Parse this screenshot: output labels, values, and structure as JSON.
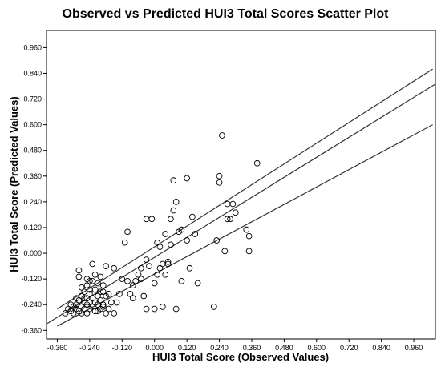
{
  "chart_data": {
    "type": "scatter",
    "title": "Observed vs Predicted HUI3 Total Scores Scatter Plot",
    "xlabel": "HUI3 Total Score (Observed Values)",
    "ylabel": "HUI3 Total Score (Predicted Values)",
    "xlim": [
      -0.4,
      1.04
    ],
    "ylim": [
      -0.4,
      1.04
    ],
    "xticks": [
      "-0.360",
      "-0.240",
      "-0.120",
      "0.000",
      "0.120",
      "0.240",
      "0.360",
      "0.480",
      "0.600",
      "0.720",
      "0.840",
      "0.960"
    ],
    "yticks": [
      "-0.360",
      "-0.240",
      "-0.120",
      "0.000",
      "0.120",
      "0.240",
      "0.360",
      "0.480",
      "0.600",
      "0.720",
      "0.840",
      "0.960"
    ],
    "xtick_values": [
      -0.36,
      -0.24,
      -0.12,
      0.0,
      0.12,
      0.24,
      0.36,
      0.48,
      0.6,
      0.72,
      0.84,
      0.96
    ],
    "ytick_values": [
      -0.36,
      -0.24,
      -0.12,
      0.0,
      0.12,
      0.24,
      0.36,
      0.48,
      0.6,
      0.72,
      0.84,
      0.96
    ],
    "grid": false,
    "marker_color": "#000000",
    "line_color": "#333333",
    "points": [
      [
        -0.33,
        -0.28
      ],
      [
        -0.32,
        -0.26
      ],
      [
        -0.31,
        -0.27
      ],
      [
        -0.3,
        -0.25
      ],
      [
        -0.3,
        -0.28
      ],
      [
        -0.29,
        -0.24
      ],
      [
        -0.29,
        -0.26
      ],
      [
        -0.28,
        -0.22
      ],
      [
        -0.28,
        -0.27
      ],
      [
        -0.27,
        -0.2
      ],
      [
        -0.27,
        -0.25
      ],
      [
        -0.27,
        -0.28
      ],
      [
        -0.26,
        -0.18
      ],
      [
        -0.26,
        -0.23
      ],
      [
        -0.26,
        -0.26
      ],
      [
        -0.25,
        -0.15
      ],
      [
        -0.25,
        -0.21
      ],
      [
        -0.25,
        -0.24
      ],
      [
        -0.25,
        -0.28
      ],
      [
        -0.24,
        -0.19
      ],
      [
        -0.24,
        -0.23
      ],
      [
        -0.24,
        -0.26
      ],
      [
        -0.23,
        -0.13
      ],
      [
        -0.23,
        -0.21
      ],
      [
        -0.23,
        -0.25
      ],
      [
        -0.22,
        -0.17
      ],
      [
        -0.22,
        -0.23
      ],
      [
        -0.22,
        -0.27
      ],
      [
        -0.21,
        -0.2
      ],
      [
        -0.21,
        -0.24
      ],
      [
        -0.2,
        -0.18
      ],
      [
        -0.2,
        -0.22
      ],
      [
        -0.2,
        -0.26
      ],
      [
        -0.19,
        -0.24
      ],
      [
        -0.18,
        -0.2
      ],
      [
        -0.18,
        -0.28
      ],
      [
        -0.28,
        -0.08
      ],
      [
        -0.28,
        -0.11
      ],
      [
        -0.27,
        -0.16
      ],
      [
        -0.26,
        -0.21
      ],
      [
        -0.25,
        -0.12
      ],
      [
        -0.24,
        -0.13
      ],
      [
        -0.23,
        -0.05
      ],
      [
        -0.22,
        -0.1
      ],
      [
        -0.21,
        -0.14
      ],
      [
        -0.2,
        -0.11
      ],
      [
        -0.19,
        -0.15
      ],
      [
        -0.19,
        -0.18
      ],
      [
        -0.18,
        -0.06
      ],
      [
        -0.17,
        -0.19
      ],
      [
        -0.16,
        -0.23
      ],
      [
        -0.15,
        -0.28
      ],
      [
        -0.14,
        -0.23
      ],
      [
        -0.13,
        -0.19
      ],
      [
        -0.12,
        -0.12
      ],
      [
        -0.11,
        0.05
      ],
      [
        -0.1,
        0.1
      ],
      [
        -0.09,
        -0.19
      ],
      [
        -0.08,
        -0.21
      ],
      [
        -0.07,
        -0.13
      ],
      [
        -0.06,
        -0.1
      ],
      [
        -0.05,
        -0.07
      ],
      [
        -0.05,
        -0.12
      ],
      [
        -0.04,
        -0.2
      ],
      [
        -0.03,
        -0.26
      ],
      [
        -0.03,
        0.16
      ],
      [
        -0.02,
        -0.06
      ],
      [
        -0.01,
        0.16
      ],
      [
        0.0,
        -0.14
      ],
      [
        0.0,
        -0.26
      ],
      [
        0.01,
        0.05
      ],
      [
        0.01,
        -0.1
      ],
      [
        0.02,
        0.03
      ],
      [
        0.03,
        -0.05
      ],
      [
        0.03,
        -0.25
      ],
      [
        0.04,
        0.09
      ],
      [
        0.04,
        -0.1
      ],
      [
        0.05,
        -0.04
      ],
      [
        0.05,
        -0.05
      ],
      [
        0.06,
        0.16
      ],
      [
        0.07,
        0.2
      ],
      [
        0.07,
        0.34
      ],
      [
        0.08,
        0.24
      ],
      [
        0.08,
        -0.26
      ],
      [
        0.09,
        0.1
      ],
      [
        0.1,
        0.11
      ],
      [
        0.1,
        -0.13
      ],
      [
        0.12,
        0.35
      ],
      [
        0.12,
        0.06
      ],
      [
        0.13,
        -0.07
      ],
      [
        0.14,
        0.17
      ],
      [
        0.15,
        0.09
      ],
      [
        0.16,
        -0.14
      ],
      [
        0.22,
        -0.25
      ],
      [
        0.23,
        0.06
      ],
      [
        0.24,
        0.33
      ],
      [
        0.24,
        0.36
      ],
      [
        0.25,
        0.55
      ],
      [
        0.26,
        0.01
      ],
      [
        0.27,
        0.16
      ],
      [
        0.27,
        0.23
      ],
      [
        0.28,
        0.16
      ],
      [
        0.29,
        0.23
      ],
      [
        0.3,
        0.19
      ],
      [
        0.34,
        0.11
      ],
      [
        0.35,
        0.08
      ],
      [
        0.35,
        0.01
      ],
      [
        0.38,
        0.42
      ],
      [
        -0.03,
        -0.03
      ],
      [
        0.02,
        -0.07
      ],
      [
        -0.08,
        -0.15
      ],
      [
        -0.15,
        -0.07
      ],
      [
        -0.1,
        -0.13
      ],
      [
        0.06,
        0.04
      ],
      [
        -0.21,
        -0.27
      ],
      [
        -0.19,
        -0.25
      ],
      [
        -0.17,
        -0.26
      ],
      [
        -0.29,
        -0.21
      ],
      [
        -0.31,
        -0.24
      ],
      [
        -0.24,
        -0.17
      ]
    ],
    "lines": [
      {
        "x": [
          -0.36,
          1.03
        ],
        "y": [
          -0.26,
          0.86
        ]
      },
      {
        "x": [
          -0.4,
          1.04
        ],
        "y": [
          -0.33,
          0.79
        ]
      },
      {
        "x": [
          -0.36,
          1.03
        ],
        "y": [
          -0.34,
          0.6
        ]
      }
    ]
  }
}
